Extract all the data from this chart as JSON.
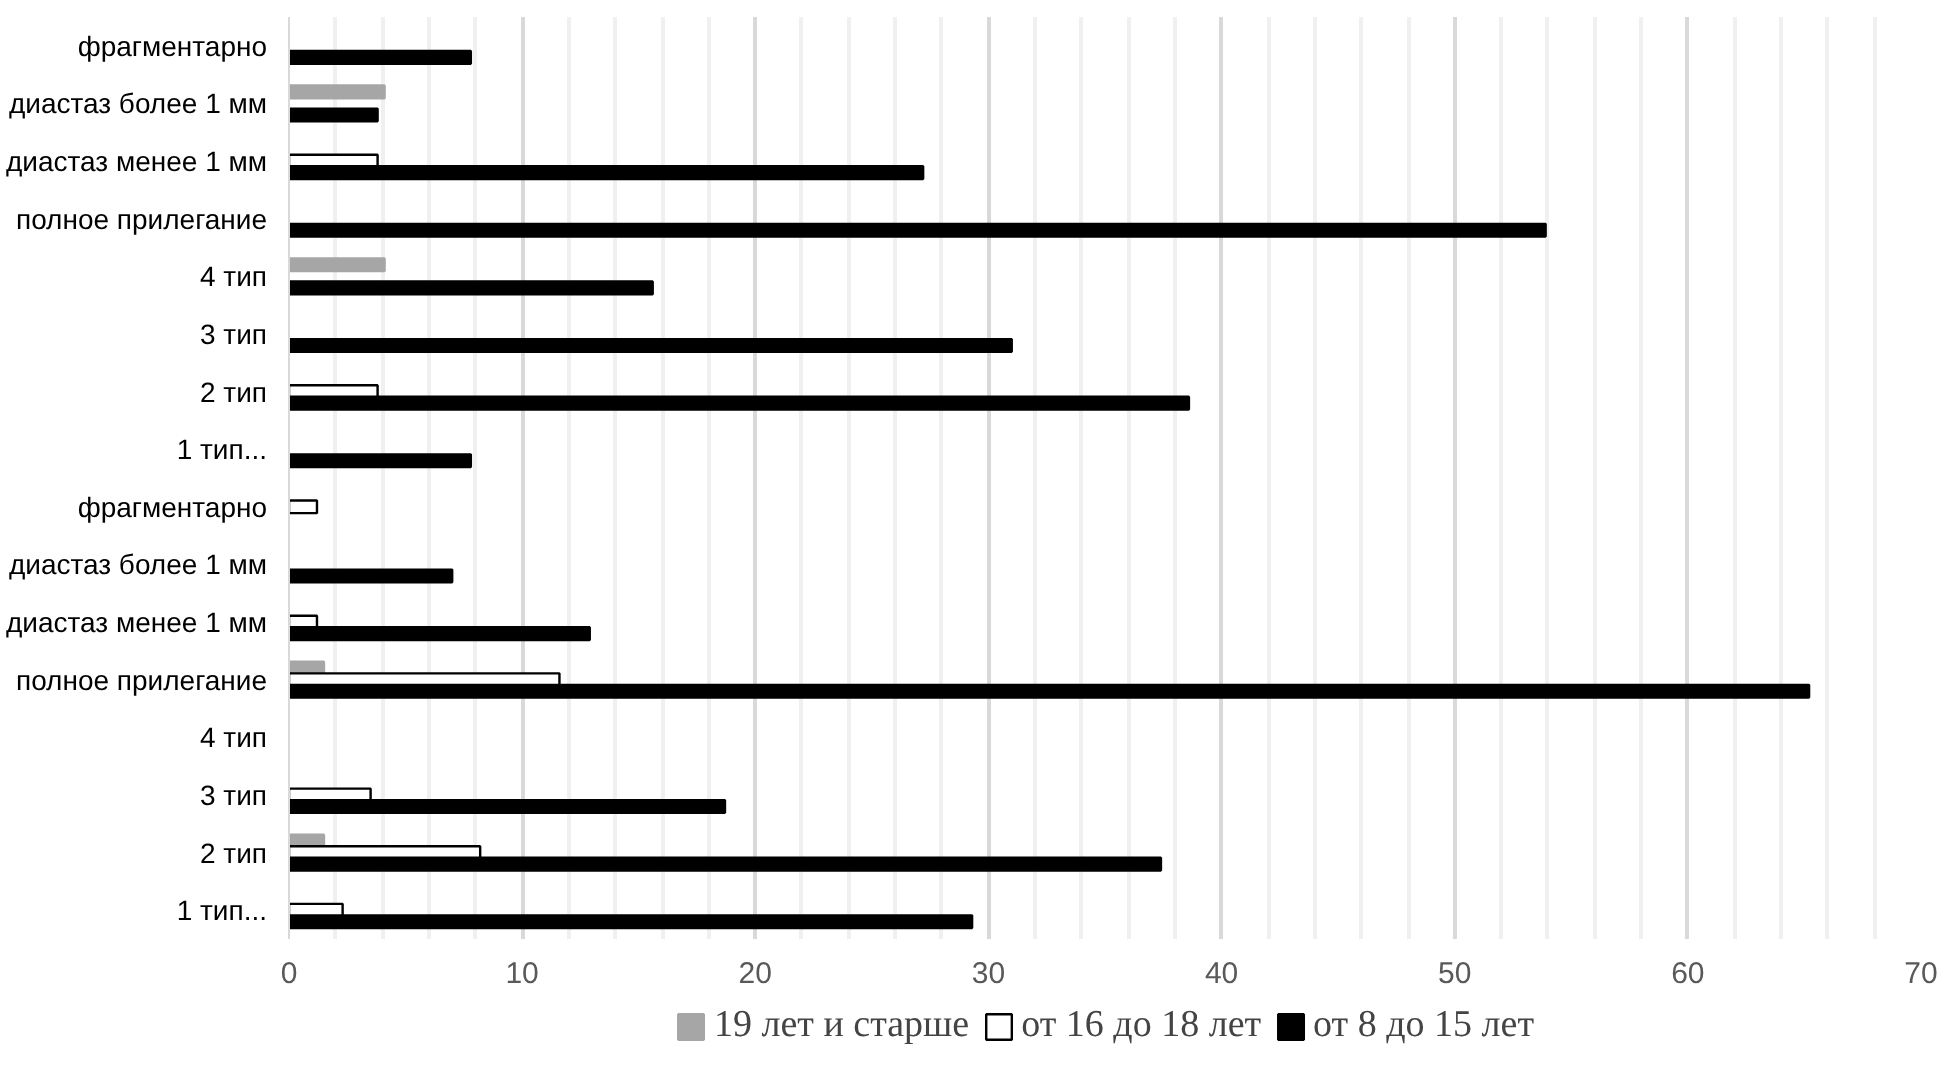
{
  "chart_data": {
    "type": "bar",
    "orientation": "horizontal",
    "categories": [
      "фрагментарно",
      "диастаз более 1 мм",
      "диастаз менее 1 мм",
      "полное прилегание",
      "4 тип",
      "3 тип",
      "2 тип",
      "1 тип...",
      "фрагментарно",
      "диастаз более 1 мм",
      "диастаз менее 1 мм",
      "полное прилегание",
      "4 тип",
      "3 тип",
      "2 тип",
      "1 тип..."
    ],
    "series": [
      {
        "name": "19 лет и старше",
        "color": "#a6a6a6",
        "values": [
          null,
          4.1,
          null,
          null,
          4.1,
          null,
          null,
          null,
          null,
          null,
          null,
          1.5,
          null,
          null,
          1.5,
          null
        ]
      },
      {
        "name": "от 16 до 18 лет",
        "color": "#ffffff",
        "values": [
          null,
          null,
          3.8,
          null,
          null,
          null,
          3.8,
          null,
          1.2,
          null,
          1.2,
          11.6,
          null,
          3.5,
          8.2,
          2.3
        ]
      },
      {
        "name": "от 8 до 15 лет",
        "color": "#000000",
        "values": [
          7.8,
          3.8,
          27.2,
          53.9,
          15.6,
          31.0,
          38.6,
          7.8,
          null,
          7.0,
          12.9,
          65.2,
          null,
          18.7,
          37.4,
          29.3
        ]
      }
    ],
    "xlim": [
      0,
      70
    ],
    "xticks": [
      0,
      10,
      20,
      30,
      40,
      50,
      60,
      70
    ],
    "grid": "x",
    "legend": "bottom"
  }
}
